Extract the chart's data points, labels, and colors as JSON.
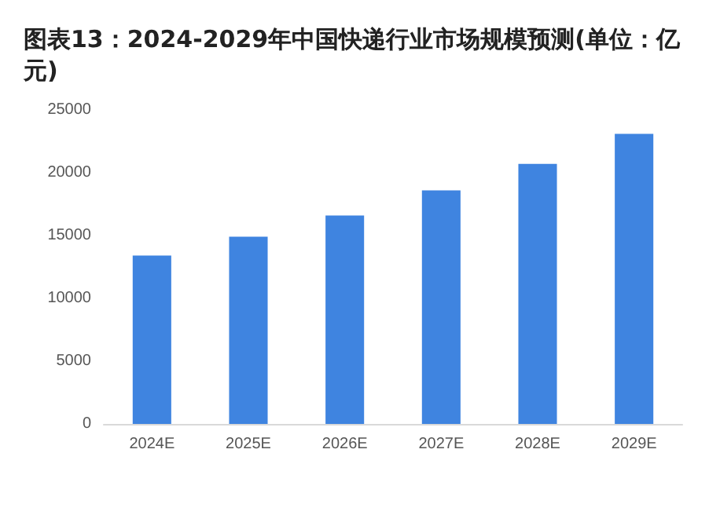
{
  "chart_data": {
    "type": "bar",
    "title": "图表13：2024-2029年中国快递行业市场规模预测(单位：亿元)",
    "categories": [
      "2024E",
      "2025E",
      "2026E",
      "2027E",
      "2028E",
      "2029E"
    ],
    "values": [
      13400,
      14900,
      16600,
      18600,
      20700,
      23100
    ],
    "color": "#3f84e0",
    "ylim": [
      0,
      25000
    ],
    "yticks": [
      0,
      5000,
      10000,
      15000,
      20000,
      25000
    ]
  }
}
